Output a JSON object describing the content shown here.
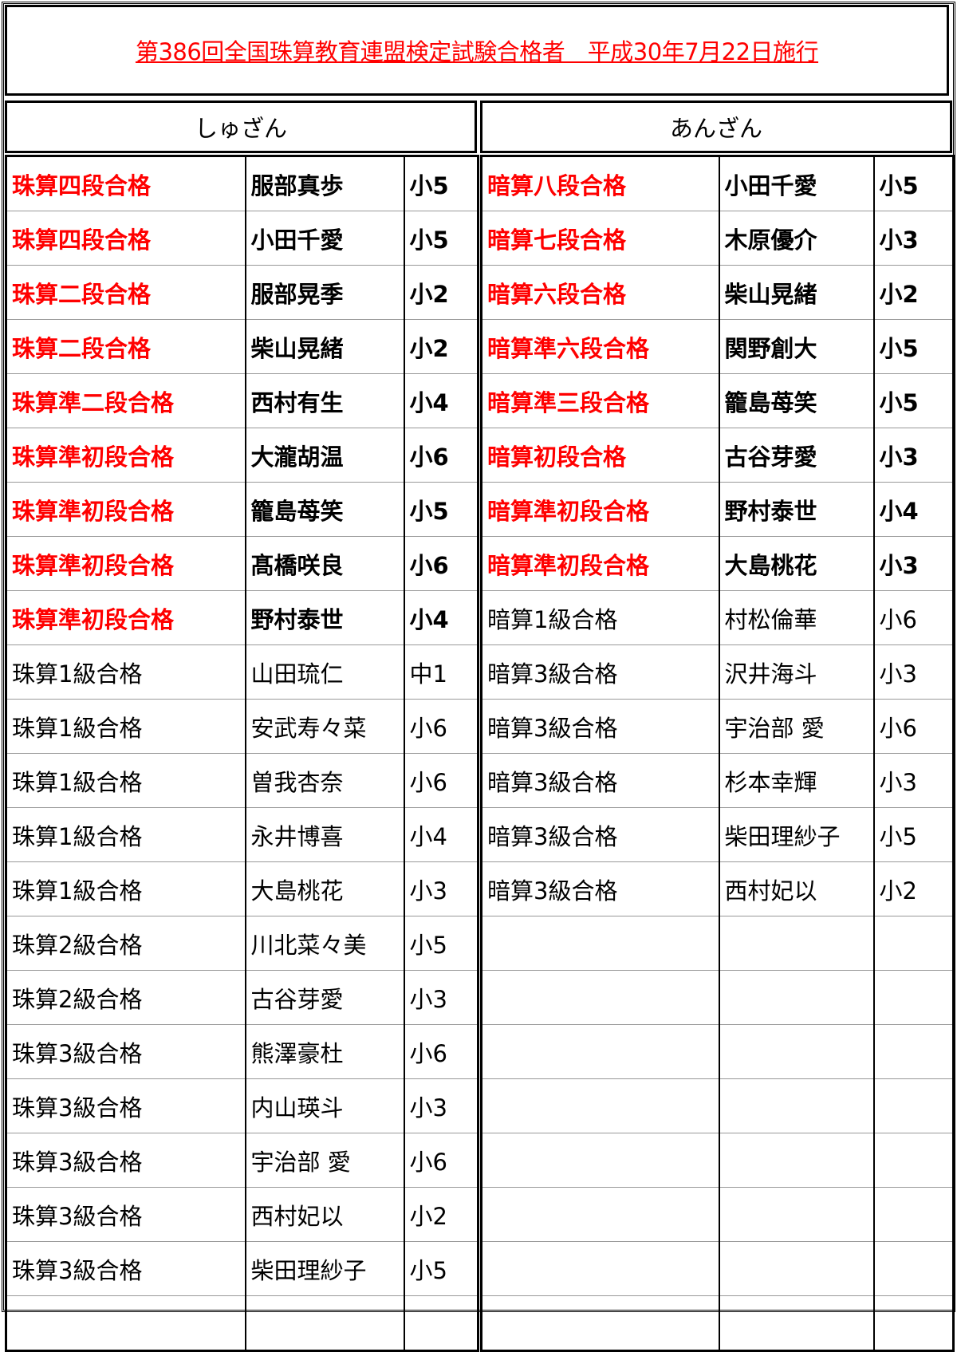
{
  "title": "第386回全国珠算教育連盟検定試験合格者　平成30年7月22日施行",
  "colors": {
    "highlight": "#ff0000",
    "text": "#000000"
  },
  "shuzan": {
    "header": "しゅざん",
    "rows": [
      {
        "grade": "珠算四段合格",
        "name": "服部真歩",
        "year": "小5",
        "highlight": true
      },
      {
        "grade": "珠算四段合格",
        "name": "小田千愛",
        "year": "小5",
        "highlight": true
      },
      {
        "grade": "珠算二段合格",
        "name": "服部晃季",
        "year": "小2",
        "highlight": true
      },
      {
        "grade": "珠算二段合格",
        "name": "柴山晃緒",
        "year": "小2",
        "highlight": true
      },
      {
        "grade": "珠算準二段合格",
        "name": "西村有生",
        "year": "小4",
        "highlight": true
      },
      {
        "grade": "珠算準初段合格",
        "name": "大瀧胡温",
        "year": "小6",
        "highlight": true
      },
      {
        "grade": "珠算準初段合格",
        "name": "籠島苺笑",
        "year": "小5",
        "highlight": true
      },
      {
        "grade": "珠算準初段合格",
        "name": "髙橋咲良",
        "year": "小6",
        "highlight": true
      },
      {
        "grade": "珠算準初段合格",
        "name": "野村泰世",
        "year": "小4",
        "highlight": true
      },
      {
        "grade": "珠算1級合格",
        "name": "山田琉仁",
        "year": "中1",
        "highlight": false
      },
      {
        "grade": "珠算1級合格",
        "name": "安武寿々菜",
        "year": "小6",
        "highlight": false
      },
      {
        "grade": "珠算1級合格",
        "name": "曽我杏奈",
        "year": "小6",
        "highlight": false
      },
      {
        "grade": "珠算1級合格",
        "name": "永井博喜",
        "year": "小4",
        "highlight": false
      },
      {
        "grade": "珠算1級合格",
        "name": "大島桃花",
        "year": "小3",
        "highlight": false
      },
      {
        "grade": "珠算2級合格",
        "name": "川北菜々美",
        "year": "小5",
        "highlight": false
      },
      {
        "grade": "珠算2級合格",
        "name": "古谷芽愛",
        "year": "小3",
        "highlight": false
      },
      {
        "grade": "珠算3級合格",
        "name": "熊澤豪杜",
        "year": "小6",
        "highlight": false
      },
      {
        "grade": "珠算3級合格",
        "name": "内山瑛斗",
        "year": "小3",
        "highlight": false
      },
      {
        "grade": "珠算3級合格",
        "name": "宇治部 愛",
        "year": "小6",
        "highlight": false
      },
      {
        "grade": "珠算3級合格",
        "name": "西村妃以",
        "year": "小2",
        "highlight": false
      },
      {
        "grade": "珠算3級合格",
        "name": "柴田理紗子",
        "year": "小5",
        "highlight": false
      }
    ]
  },
  "anzan": {
    "header": "あんざん",
    "rows": [
      {
        "grade": "暗算八段合格",
        "name": "小田千愛",
        "year": "小5",
        "highlight": true
      },
      {
        "grade": "暗算七段合格",
        "name": "木原優介",
        "year": "小3",
        "highlight": true
      },
      {
        "grade": "暗算六段合格",
        "name": "柴山晃緒",
        "year": "小2",
        "highlight": true
      },
      {
        "grade": "暗算準六段合格",
        "name": "関野創大",
        "year": "小5",
        "highlight": true
      },
      {
        "grade": "暗算準三段合格",
        "name": "籠島苺笑",
        "year": "小5",
        "highlight": true
      },
      {
        "grade": "暗算初段合格",
        "name": "古谷芽愛",
        "year": "小3",
        "highlight": true
      },
      {
        "grade": "暗算準初段合格",
        "name": "野村泰世",
        "year": "小4",
        "highlight": true
      },
      {
        "grade": "暗算準初段合格",
        "name": "大島桃花",
        "year": "小3",
        "highlight": true
      },
      {
        "grade": "暗算1級合格",
        "name": "村松倫華",
        "year": "小6",
        "highlight": false
      },
      {
        "grade": "暗算3級合格",
        "name": "沢井海斗",
        "year": "小3",
        "highlight": false
      },
      {
        "grade": "暗算3級合格",
        "name": "宇治部 愛",
        "year": "小6",
        "highlight": false
      },
      {
        "grade": "暗算3級合格",
        "name": "杉本幸輝",
        "year": "小3",
        "highlight": false
      },
      {
        "grade": "暗算3級合格",
        "name": "柴田理紗子",
        "year": "小5",
        "highlight": false
      },
      {
        "grade": "暗算3級合格",
        "name": "西村妃以",
        "year": "小2",
        "highlight": false
      }
    ]
  }
}
